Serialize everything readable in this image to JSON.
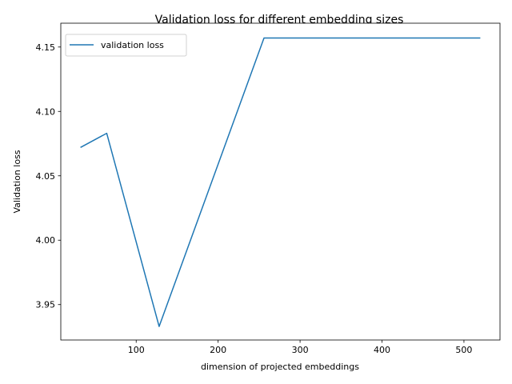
{
  "chart_data": {
    "type": "line",
    "title": "Validation loss for different embedding sizes",
    "xlabel": "dimension of projected embeddings",
    "ylabel": "Validation loss",
    "xlim": [
      8,
      544
    ],
    "ylim": [
      3.9225,
      4.1685
    ],
    "xticks": [
      100,
      200,
      300,
      400,
      500
    ],
    "yticks": [
      3.95,
      4.0,
      4.05,
      4.1,
      4.15
    ],
    "ytick_labels": [
      "3.95",
      "4.00",
      "4.05",
      "4.10",
      "4.15"
    ],
    "legend_position": "upper left",
    "grid": false,
    "series": [
      {
        "name": "validation loss",
        "color": "#1f77b4",
        "x": [
          32,
          64,
          128,
          256,
          512,
          520
        ],
        "y": [
          4.072,
          4.083,
          3.933,
          4.157,
          4.157,
          4.157
        ]
      }
    ]
  }
}
